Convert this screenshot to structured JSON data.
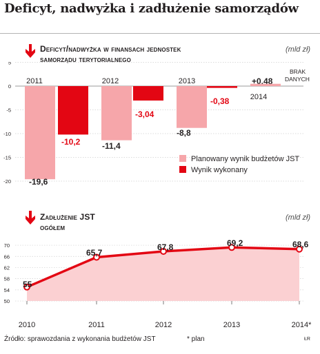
{
  "title": "Deficyt, nadwyżka i zadłużenie samorządów",
  "panel1": {
    "title_line1": "Deficyt/nadwyżka w finansach jednostek",
    "title_line2": "samorządu terytorialnego",
    "unit": "(mld zł)",
    "no_data_line1": "BRAK",
    "no_data_line2": "DANYCH"
  },
  "panel2": {
    "title_line1": "Zadłużenie JST",
    "title_line2": "ogółem",
    "unit": "(mld zł)"
  },
  "footer": {
    "source": "Źródło: sprawozdania z wykonania budżetów JST",
    "note": "* plan",
    "credit": "ŁR"
  },
  "colors": {
    "accent": "#e30613",
    "planned": "#f6a6aa",
    "area": "#fbd0d2",
    "text": "#231f20"
  },
  "icons": [
    "down-arrow-icon"
  ],
  "chart_data": [
    {
      "type": "bar",
      "categories": [
        "2011",
        "2012",
        "2013",
        "2014"
      ],
      "series": [
        {
          "name": "Planowany wynik budżetów JST",
          "values": [
            -19.6,
            -11.4,
            -8.8,
            0.48
          ],
          "labels": [
            "-19,6",
            "-11,4",
            "-8,8",
            "+0,48"
          ]
        },
        {
          "name": "Wynik wykonany",
          "values": [
            -10.2,
            -3.04,
            -0.38,
            null
          ],
          "labels": [
            "-10,2",
            "-3,04",
            "-0,38",
            ""
          ]
        }
      ],
      "yticks": [
        5,
        0,
        -5,
        -10,
        -15,
        -20
      ],
      "ylim": [
        -21,
        5
      ],
      "legend": "bottom-right",
      "grid": true
    },
    {
      "type": "area",
      "x": [
        "2010",
        "2011",
        "2012",
        "2013",
        "2014*"
      ],
      "series": [
        {
          "values": [
            55,
            65.7,
            67.8,
            69.2,
            68.6
          ],
          "labels": [
            "55",
            "65,7",
            "67,8",
            "69,2",
            "68,6"
          ]
        }
      ],
      "yticks": [
        70,
        66,
        62,
        58,
        54,
        50
      ],
      "ylim": [
        50,
        71
      ],
      "grid": true
    }
  ]
}
